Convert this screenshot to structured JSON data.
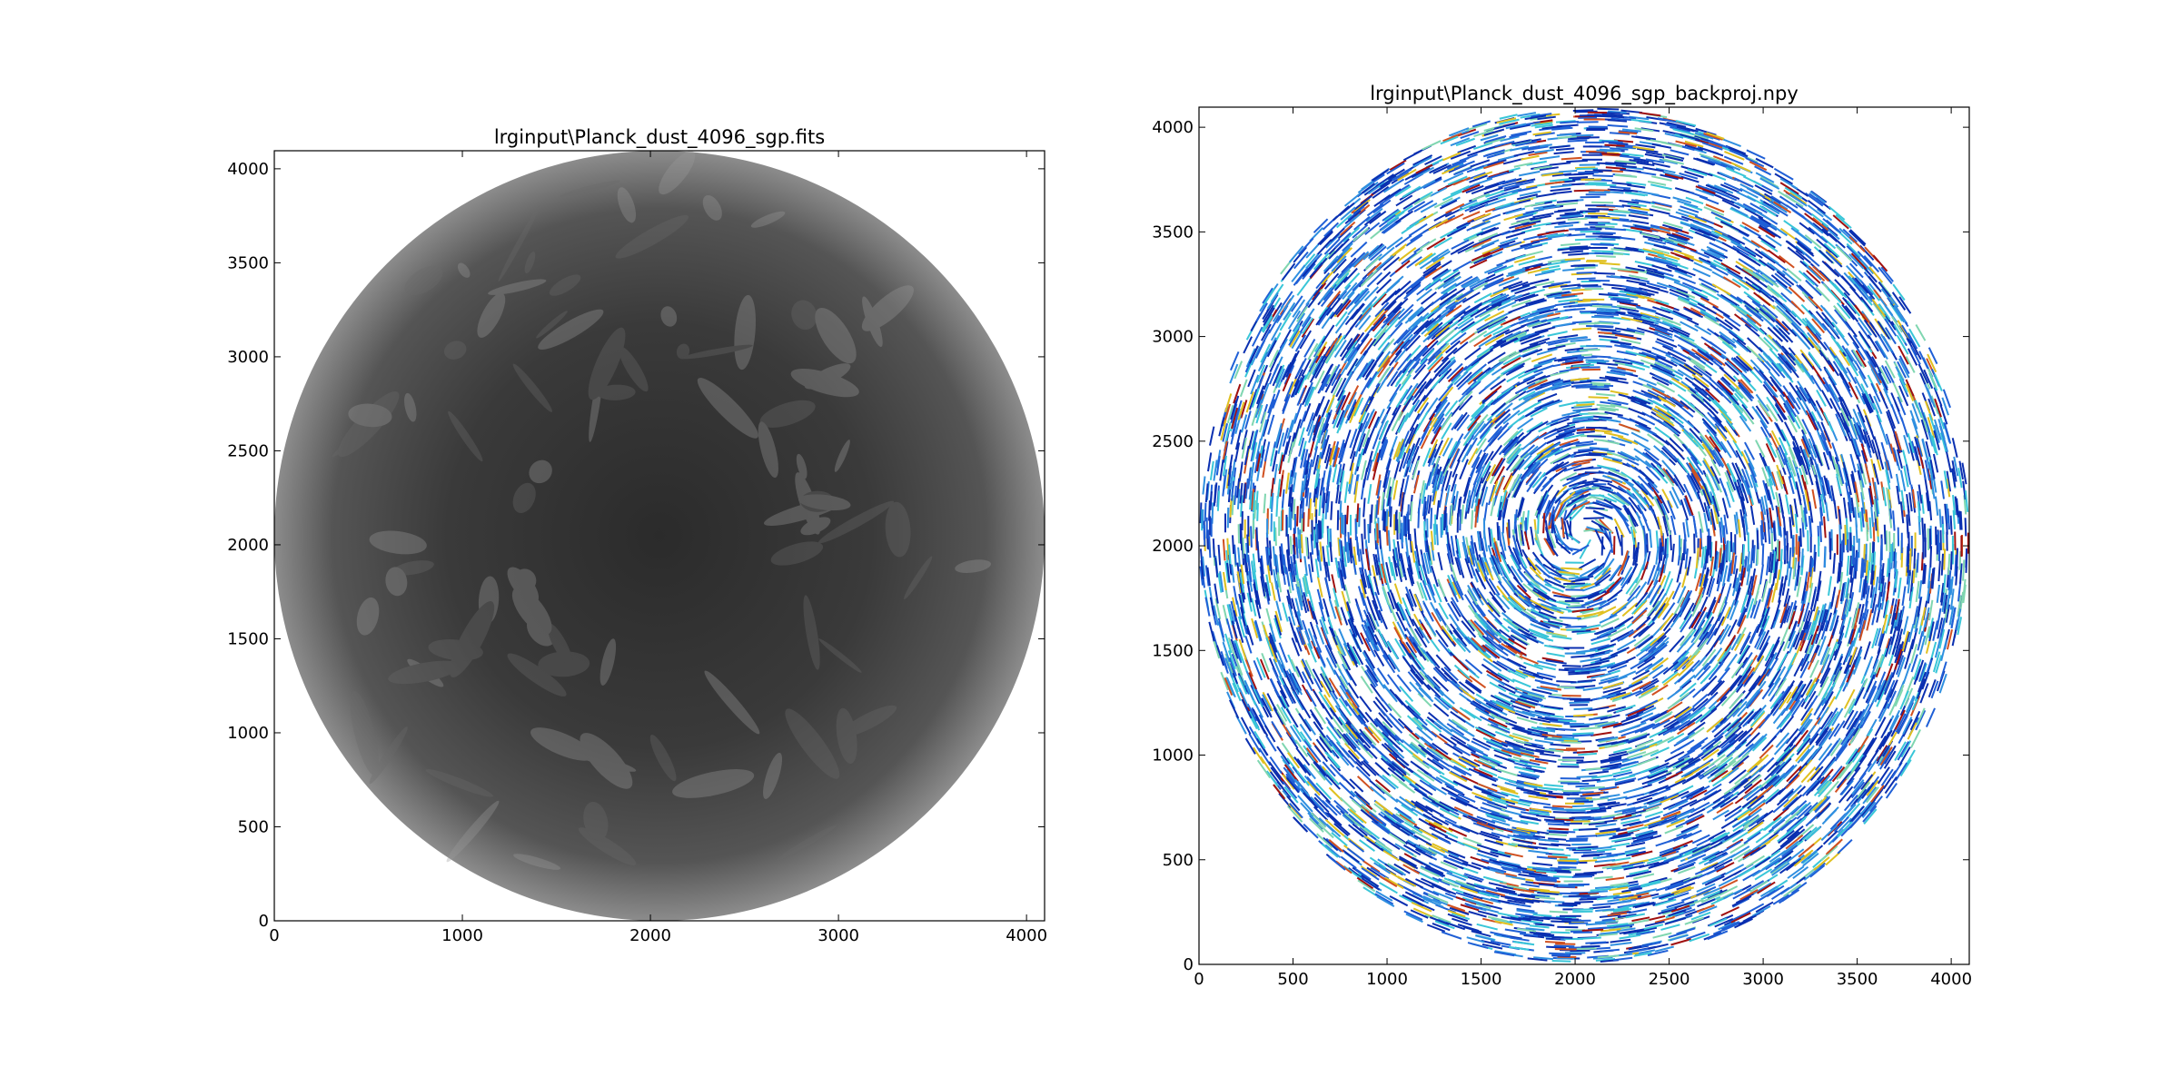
{
  "chart_data": [
    {
      "type": "heatmap",
      "title": "lrginput\\Planck_dust_4096_sgp.fits",
      "xlabel": "",
      "ylabel": "",
      "xlim": [
        0,
        4096
      ],
      "ylim": [
        0,
        4096
      ],
      "xticks": [
        0,
        1000,
        2000,
        3000,
        4000
      ],
      "yticks": [
        0,
        500,
        1000,
        1500,
        2000,
        2500,
        3000,
        3500,
        4000
      ],
      "colormap": "gray",
      "content": "circular sky map, dark gray disk with brighter diffuse filaments near the rim",
      "colors": {
        "disk_dark": "#2f2f2f",
        "disk_mid": "#4a4a4a",
        "disk_rim": "#8a8a8a",
        "background": "#ffffff"
      }
    },
    {
      "type": "heatmap",
      "title": "lrginput\\Planck_dust_4096_sgp_backproj.npy",
      "xlabel": "",
      "ylabel": "",
      "xlim": [
        0,
        4096
      ],
      "ylim": [
        0,
        4096
      ],
      "xticks": [
        0,
        500,
        1000,
        1500,
        2000,
        2500,
        3000,
        3500,
        4000
      ],
      "yticks": [
        0,
        500,
        1000,
        1500,
        2000,
        2500,
        3000,
        3500,
        4000
      ],
      "colormap": "jet",
      "content": "circular noisy back-projection, speckled pattern dominated by blue with cyan, yellow and red specks",
      "colors": {
        "speckle": [
          "#0a2fb0",
          "#1f5fd6",
          "#2f8fe0",
          "#39c6d8",
          "#7fd6b0",
          "#e0c020",
          "#d05020",
          "#a01010"
        ],
        "background": "#ffffff"
      }
    }
  ]
}
